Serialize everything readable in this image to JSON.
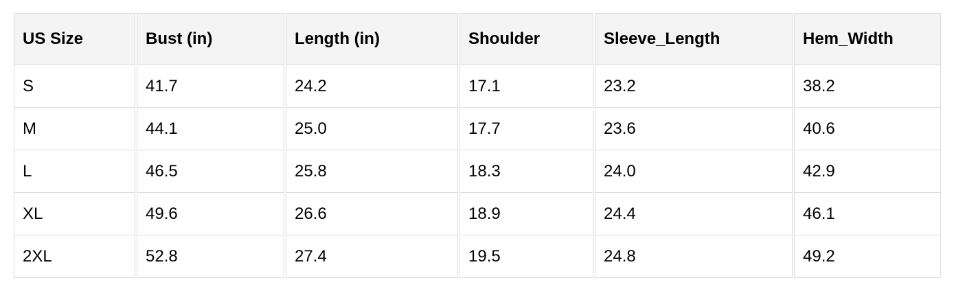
{
  "table": {
    "headers": [
      "US Size",
      "Bust (in)",
      "Length (in)",
      "Shoulder",
      "Sleeve_Length",
      "Hem_Width"
    ],
    "rows": [
      [
        "S",
        "41.7",
        "24.2",
        "17.1",
        "23.2",
        "38.2"
      ],
      [
        "M",
        "44.1",
        "25.0",
        "17.7",
        "23.6",
        "40.6"
      ],
      [
        "L",
        "46.5",
        "25.8",
        "18.3",
        "24.0",
        "42.9"
      ],
      [
        "XL",
        "49.6",
        "26.6",
        "18.9",
        "24.4",
        "46.1"
      ],
      [
        "2XL",
        "52.8",
        "27.4",
        "19.5",
        "24.8",
        "49.2"
      ]
    ]
  }
}
